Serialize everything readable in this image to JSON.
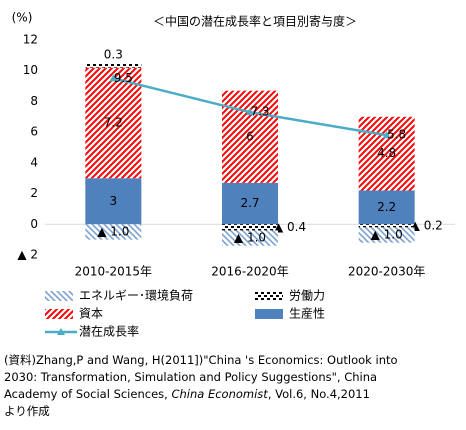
{
  "chart_data": {
    "type": "stacked_bar_line",
    "title": "＜中国の潜在成長率と項目別寄与度＞",
    "y_label": "(%)",
    "categories": [
      "2010-2015年",
      "2016-2020年",
      "2020-2030年"
    ],
    "ylim": [
      -2,
      12
    ],
    "yticks": [
      {
        "value": -2,
        "label": "▲ 2"
      },
      0,
      2,
      4,
      6,
      8,
      10,
      12
    ],
    "series": [
      {
        "name": "エネルギー･環境負荷",
        "color": "#4f81bd",
        "pattern": "hatch-left",
        "kind": "bar",
        "values": [
          -1.0,
          -1.0,
          -1.0
        ],
        "value_labels": [
          "▲ 1.0",
          "▲ 1.0",
          "▲ 1.0"
        ]
      },
      {
        "name": "労働力",
        "color": "#000000",
        "pattern": "dots",
        "kind": "bar",
        "values": [
          0.3,
          -0.4,
          -0.2
        ],
        "value_labels": [
          "0.3",
          "▲ 0.4",
          "▲ 0.2"
        ]
      },
      {
        "name": "資本",
        "color": "#ff0000",
        "pattern": "hatch-right",
        "kind": "bar",
        "values": [
          7.2,
          6.0,
          4.8
        ]
      },
      {
        "name": "生産性",
        "color": "#4f81bd",
        "pattern": "solid",
        "kind": "bar",
        "values": [
          3.0,
          2.7,
          2.2
        ]
      },
      {
        "name": "潜在成長率",
        "color": "#4bacc6",
        "kind": "line",
        "values": [
          9.5,
          7.3,
          5.8
        ]
      }
    ],
    "note": [
      [
        {
          "text": "(資料)Zhang,P and Wang, H(2011])\"China 's Economics: Outlook into"
        }
      ],
      [
        {
          "text": "2030:  Transformation, Simulation and Policy Suggestions\", China"
        }
      ],
      [
        {
          "text": "Academy of Social Sciences, "
        },
        {
          "text": "China Economist",
          "italic": true
        },
        {
          "text": ",  Vol.6, No.4,2011"
        }
      ],
      [
        {
          "text": "より作成"
        }
      ]
    ]
  }
}
